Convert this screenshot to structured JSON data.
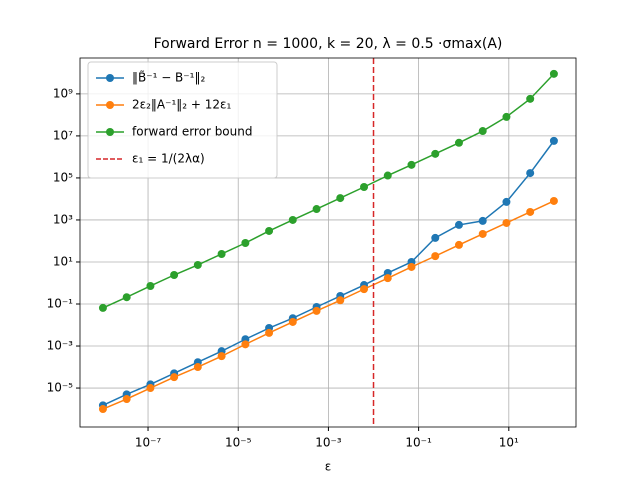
{
  "chart_data": {
    "type": "line",
    "title": "Forward Error n = 1000, k = 20, λ = 0.5 ·σmax(A)",
    "x_label": "ε",
    "log_x": true,
    "log_y": true,
    "grid": true,
    "legend": "upper left",
    "x": [
      1e-08,
      3.36e-08,
      1.13e-07,
      3.79e-07,
      1.27e-06,
      4.28e-06,
      1.44e-05,
      4.83e-05,
      0.000162,
      0.000546,
      0.00183,
      0.00616,
      0.0207,
      0.0695,
      0.234,
      0.785,
      2.64,
      8.86,
      29.8,
      100
    ],
    "series": [
      {
        "name": "‖B̃⁻¹ − B⁻¹‖₂",
        "color": "#1f77b4",
        "values": [
          1.5e-06,
          5e-06,
          1.5e-05,
          5e-05,
          0.00017,
          0.00057,
          0.0021,
          0.0072,
          0.021,
          0.072,
          0.24,
          0.8,
          3,
          10,
          140,
          580,
          900,
          7200,
          170000,
          5800000
        ]
      },
      {
        "name": "2ε₂‖A⁻¹‖₂ + 12ε₁",
        "color": "#ff7f0e",
        "values": [
          1e-06,
          3e-06,
          1e-05,
          3.3e-05,
          0.0001,
          0.00033,
          0.0012,
          0.0042,
          0.014,
          0.047,
          0.15,
          0.51,
          1.7,
          5.8,
          19,
          65,
          215,
          720,
          2400,
          8000
        ]
      },
      {
        "name": "forward error bound",
        "color": "#2ca02c",
        "values": [
          0.065,
          0.21,
          0.72,
          2.4,
          7.2,
          24,
          80,
          300,
          1000,
          3300,
          11000,
          37000,
          130000,
          420000,
          1400000,
          4700000,
          17000000,
          80000000,
          580000000,
          9000000000
        ]
      }
    ],
    "vlines": [
      {
        "name": "ε₁ = 1/(2λα)",
        "x": 0.01,
        "color": "#d62728"
      }
    ],
    "xlim": [
      3.1e-09,
      309
    ],
    "ylim": [
      1.4e-07,
      51000000000.0
    ],
    "xticks": [
      {
        "value": 1e-07,
        "label": "10⁻⁷"
      },
      {
        "value": 1e-05,
        "label": "10⁻⁵"
      },
      {
        "value": 0.001,
        "label": "10⁻³"
      },
      {
        "value": 0.1,
        "label": "10⁻¹"
      },
      {
        "value": 10,
        "label": "10¹"
      }
    ],
    "yticks": [
      {
        "value": 1e-05,
        "label": "10⁻⁵"
      },
      {
        "value": 0.001,
        "label": "10⁻³"
      },
      {
        "value": 0.1,
        "label": "10⁻¹"
      },
      {
        "value": 10,
        "label": "10¹"
      },
      {
        "value": 1000,
        "label": "10³"
      },
      {
        "value": 100000,
        "label": "10⁵"
      },
      {
        "value": 10000000,
        "label": "10⁷"
      },
      {
        "value": 1000000000,
        "label": "10⁹"
      }
    ]
  }
}
